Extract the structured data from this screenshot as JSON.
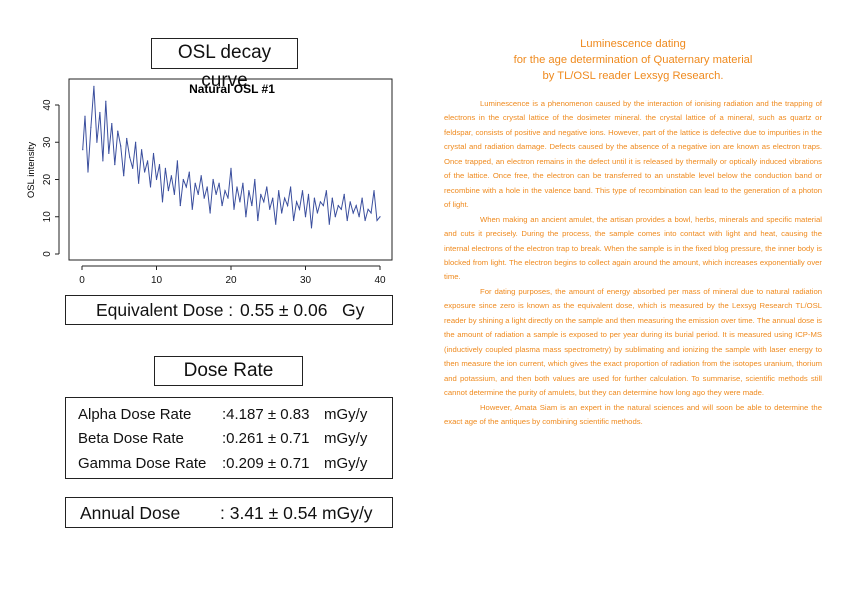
{
  "left": {
    "osl_title": "OSL decay curve",
    "equivalent_dose": {
      "label": "Equivalent Dose :",
      "value": "0.55 ± 0.06",
      "unit": "Gy"
    },
    "dose_rate_title": "Dose Rate",
    "dose_rates": [
      {
        "label": "Alpha Dose Rate",
        "value": ":4.187 ± 0.83",
        "unit": "mGy/y"
      },
      {
        "label": "Beta Dose Rate",
        "value": ":0.261 ± 0.71",
        "unit": "mGy/y"
      },
      {
        "label": "Gamma Dose Rate",
        "value": ":0.209 ± 0.71",
        "unit": "mGy/y"
      }
    ],
    "annual_dose": {
      "label": "Annual Dose",
      "value": ": 3.41 ± 0.54",
      "unit": "mGy/y"
    }
  },
  "right": {
    "heading": [
      "Luminescence dating",
      "for the age determination of Quaternary material",
      "by TL/OSL reader Lexsyg Research."
    ],
    "paragraphs": [
      "Luminescence is a phenomenon caused by the interaction of ionising radiation and the trapping of electrons in the crystal lattice of the dosimeter mineral. the crystal lattice of a mineral, such as quartz or feldspar, consists of positive and negative ions. However, part of the lattice is defective due to impurities in the crystal and radiation damage. Defects caused by the absence of a negative ion are known as electron traps. Once trapped, an electron remains in the defect until it is released by thermally or optically induced vibrations of the lattice. Once free, the electron can be transferred to an unstable level below the conduction band or recombine with a hole in the valence band. This type of recombination can lead to the generation of a photon of light.",
      "When making an ancient amulet, the artisan provides a bowl, herbs, minerals and specific material and cuts it precisely. During the process, the sample comes into contact with light and heat, causing the internal electrons of the electron trap to break. When the sample is in the fixed blog pressure, the inner body is blocked from light. The electron begins to collect again around the amount, which increases exponentially over time.",
      "For dating purposes, the amount of energy absorbed per mass of mineral due to natural radiation exposure since zero is known as the equivalent dose, which is measured by the Lexsyg Research TL/OSL reader by shining a light directly on the sample and then measuring the emission over time. The annual dose is the amount of radiation a sample is exposed to per year during its burial period. It is measured using ICP-MS (inductively coupled plasma mass spectrometry) by sublimating and ionizing the sample with laser energy to then measure the ion current, which gives the exact proportion of radiation from the isotopes uranium, thorium and potassium, and then both values are used for further calculation. To summarise, scientific methods still cannot determine the purity of amulets, but they can determine how long ago they were made.",
      "However, Amata Siam is an expert in the natural sciences and will soon be able to determine the exact age of the antiques by combining scientific methods."
    ]
  },
  "colors": {
    "accent": "#ef8a1e",
    "series": "#3b4f9e"
  },
  "chart_data": {
    "type": "line",
    "title": "Natural OSL #1",
    "xlabel": "",
    "ylabel": "OSL intensity",
    "xlim": [
      0,
      40
    ],
    "ylim": [
      0,
      45
    ],
    "xticks": [
      0,
      10,
      20,
      30,
      40
    ],
    "yticks": [
      0,
      10,
      20,
      30,
      40
    ],
    "series": [
      {
        "color": "#3b4f9e",
        "x": [
          0.1,
          0.4,
          0.8,
          1.2,
          1.6,
          2.0,
          2.4,
          2.8,
          3.2,
          3.6,
          4.0,
          4.4,
          4.8,
          5.2,
          5.6,
          6.0,
          6.4,
          6.8,
          7.2,
          7.6,
          8.0,
          8.4,
          8.8,
          9.2,
          9.6,
          10.0,
          10.4,
          10.8,
          11.2,
          11.6,
          12.0,
          12.4,
          12.8,
          13.2,
          13.6,
          14.0,
          14.4,
          14.8,
          15.2,
          15.6,
          16.0,
          16.4,
          16.8,
          17.2,
          17.6,
          18.0,
          18.4,
          18.8,
          19.2,
          19.6,
          20.0,
          20.4,
          20.8,
          21.2,
          21.6,
          22.0,
          22.4,
          22.8,
          23.2,
          23.6,
          24.0,
          24.4,
          24.8,
          25.2,
          25.6,
          26.0,
          26.4,
          26.8,
          27.2,
          27.6,
          28.0,
          28.4,
          28.8,
          29.2,
          29.6,
          30.0,
          30.4,
          30.8,
          31.2,
          31.6,
          32.0,
          32.4,
          32.8,
          33.2,
          33.6,
          34.0,
          34.4,
          34.8,
          35.2,
          35.6,
          36.0,
          36.4,
          36.8,
          37.2,
          37.6,
          38.0,
          38.4,
          38.8,
          39.2,
          39.6,
          40.0
        ],
        "y": [
          28,
          37,
          22,
          34,
          45,
          30,
          38,
          25,
          41,
          27,
          35,
          24,
          33,
          29,
          21,
          31,
          26,
          23,
          30,
          19,
          28,
          22,
          25,
          18,
          27,
          20,
          24,
          14,
          23,
          17,
          21,
          16,
          25,
          13,
          20,
          18,
          22,
          12,
          19,
          16,
          21,
          15,
          18,
          11,
          20,
          16,
          19,
          13,
          17,
          15,
          23,
          12,
          18,
          14,
          19,
          10,
          17,
          13,
          20,
          9,
          16,
          14,
          18,
          12,
          15,
          8,
          17,
          11,
          15,
          13,
          18,
          9,
          14,
          12,
          17,
          10,
          16,
          7,
          15,
          11,
          14,
          13,
          17,
          8,
          15,
          10,
          13,
          12,
          16,
          9,
          14,
          11,
          13,
          10,
          15,
          9,
          12,
          11,
          17,
          9,
          10
        ]
      }
    ]
  }
}
